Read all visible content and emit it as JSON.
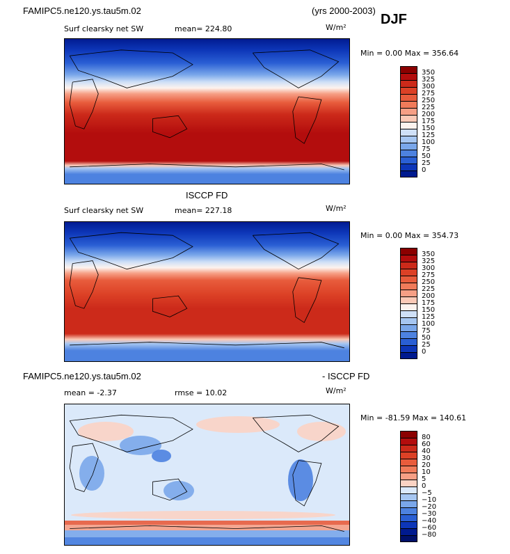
{
  "header": {
    "case_name": "FAMIPC5.ne120.ys.tau5m.02",
    "years": "(yrs 2000-2003)",
    "season": "DJF"
  },
  "panels": [
    {
      "title": "",
      "field": "Surf clearsky net SW",
      "stat1": "mean= 224.80",
      "stat2": "",
      "units": "W/m²",
      "minmax": "Min =   0.00 Max = 356.64",
      "scale": "absolute"
    },
    {
      "title": "ISCCP FD",
      "field": "Surf clearsky net SW",
      "stat1": "mean= 227.18",
      "stat2": "",
      "units": "W/m²",
      "minmax": "Min =   0.00 Max = 354.73",
      "scale": "absolute"
    },
    {
      "title_left": "FAMIPC5.ne120.ys.tau5m.02",
      "title_right": "- ISCCP FD",
      "stat1": "mean =  -2.37",
      "stat2": "rmse =  10.02",
      "units": "W/m²",
      "minmax": "Min = -81.59 Max = 140.61",
      "scale": "difference"
    }
  ],
  "colorbars": {
    "absolute": {
      "labels": [
        "350",
        "325",
        "300",
        "275",
        "250",
        "225",
        "200",
        "175",
        "150",
        "125",
        "100",
        "75",
        "50",
        "25",
        "0"
      ],
      "colors": [
        "#8b0000",
        "#b30d0d",
        "#cc2a1a",
        "#dc4126",
        "#e85c3c",
        "#f07b5a",
        "#f69f85",
        "#fbc9b6",
        "#fdf3ee",
        "#cfe0f7",
        "#a6c6f1",
        "#7aa7ea",
        "#4d82e0",
        "#2a5fd4",
        "#0d36b8",
        "#001a8f"
      ]
    },
    "difference": {
      "labels": [
        "80",
        "60",
        "40",
        "30",
        "20",
        "10",
        "5",
        "0",
        "−5",
        "−10",
        "−20",
        "−30",
        "−40",
        "−60",
        "−80"
      ],
      "colors": [
        "#8b0000",
        "#b30d0d",
        "#cc2a1a",
        "#dc4126",
        "#e85c3c",
        "#f07b5a",
        "#f69f85",
        "#fbd3c4",
        "#dbe9fa",
        "#a6c6f1",
        "#7aa7ea",
        "#4d82e0",
        "#2a5fd4",
        "#0d36b8",
        "#001a8f",
        "#00106a"
      ]
    }
  }
}
